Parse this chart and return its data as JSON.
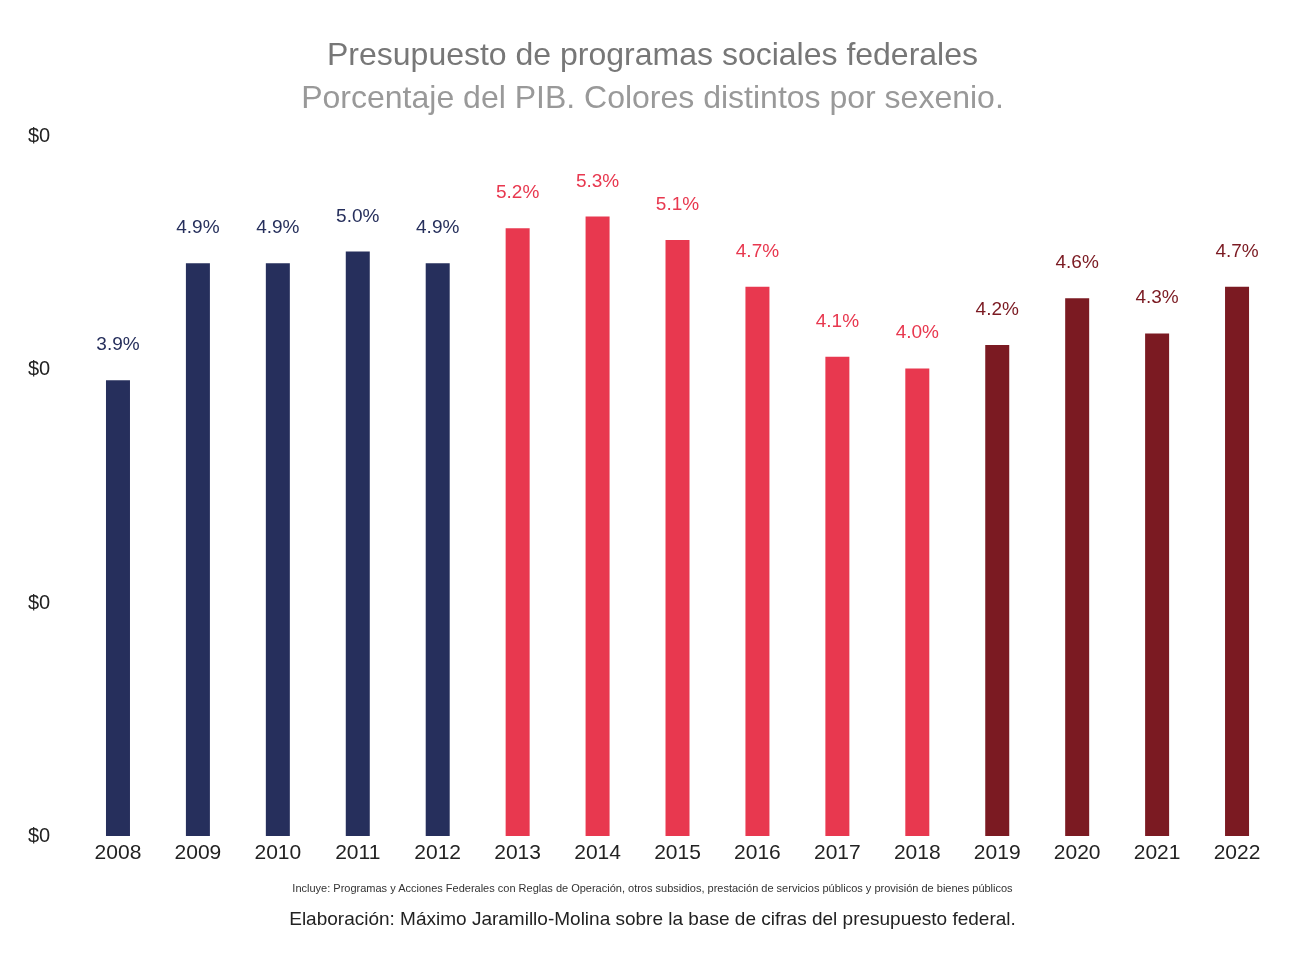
{
  "chart_data": {
    "type": "bar",
    "title": "Presupuesto de programas sociales federales",
    "subtitle": "Porcentaje del PIB. Colores distintos por sexenio.",
    "categories": [
      "2008",
      "2009",
      "2010",
      "2011",
      "2012",
      "2013",
      "2014",
      "2015",
      "2016",
      "2017",
      "2018",
      "2019",
      "2020",
      "2021",
      "2022"
    ],
    "values": [
      3.9,
      4.9,
      4.9,
      5.0,
      4.9,
      5.2,
      5.3,
      5.1,
      4.7,
      4.1,
      4.0,
      4.2,
      4.6,
      4.3,
      4.7
    ],
    "value_labels": [
      "3.9%",
      "4.9%",
      "4.9%",
      "5.0%",
      "4.9%",
      "5.2%",
      "5.3%",
      "5.1%",
      "4.7%",
      "4.1%",
      "4.0%",
      "4.2%",
      "4.6%",
      "4.3%",
      "4.7%"
    ],
    "colors": [
      "#262f5c",
      "#262f5c",
      "#262f5c",
      "#262f5c",
      "#262f5c",
      "#e8384f",
      "#e8384f",
      "#e8384f",
      "#e8384f",
      "#e8384f",
      "#e8384f",
      "#7b1a22",
      "#7b1a22",
      "#7b1a22",
      "#7b1a22"
    ],
    "annotations": [
      "$0",
      "$0",
      "$0",
      "$0",
      "Incluye:  Programas y Acciones Federales con Reglas de Operación, otros subsidios, prestación de servicios públicos y provisión de bienes públicos",
      "Elaboración: Máximo Jaramillo-Molina sobre la base de cifras del presupuesto federal."
    ]
  }
}
